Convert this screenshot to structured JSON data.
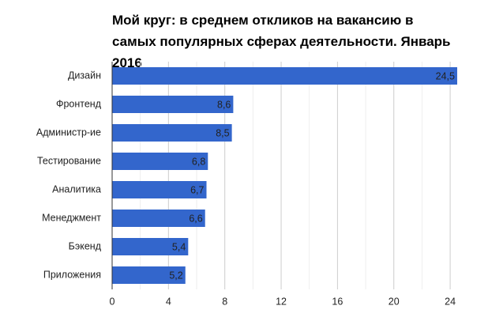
{
  "chart_data": {
    "type": "hbar",
    "title": "Мой круг: в среднем откликов на вакансию в самых популярных сферах деятельности. Январь 2016",
    "categories": [
      "Дизайн",
      "Фронтенд",
      "Администр-ие",
      "Тестирование",
      "Аналитика",
      "Менеджмент",
      "Бэкенд",
      "Приложения"
    ],
    "values": [
      24.5,
      8.6,
      8.5,
      6.8,
      6.7,
      6.6,
      5.4,
      5.2
    ],
    "value_labels": [
      "24,5",
      "8,6",
      "8,5",
      "6,8",
      "6,7",
      "6,6",
      "5,4",
      "5,2"
    ],
    "color": "#3366cc",
    "xlim": [
      0,
      24.5
    ],
    "xticks": [
      0,
      4,
      8,
      12,
      16,
      20,
      24
    ],
    "x_minor_gridlines": [
      2,
      6,
      10,
      14,
      18,
      22
    ],
    "grid": true
  }
}
